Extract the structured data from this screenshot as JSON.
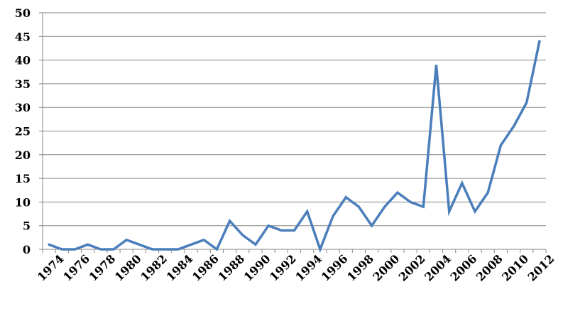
{
  "chart_data": {
    "type": "line",
    "title": "",
    "xlabel": "",
    "ylabel": "",
    "x": [
      1974,
      1975,
      1976,
      1977,
      1978,
      1979,
      1980,
      1981,
      1982,
      1983,
      1984,
      1985,
      1986,
      1987,
      1988,
      1989,
      1990,
      1991,
      1992,
      1993,
      1994,
      1995,
      1996,
      1997,
      1998,
      1999,
      2000,
      2001,
      2002,
      2003,
      2004,
      2005,
      2006,
      2007,
      2008,
      2009,
      2010,
      2011,
      2012
    ],
    "x_tick_labels": [
      "1974",
      "1976",
      "1978",
      "1980",
      "1982",
      "1984",
      "1986",
      "1988",
      "1990",
      "1992",
      "1994",
      "1996",
      "1998",
      "2000",
      "2002",
      "2004",
      "2006",
      "2008",
      "2010",
      "2012"
    ],
    "y_tick_labels": [
      "0",
      "5",
      "10",
      "15",
      "20",
      "25",
      "30",
      "35",
      "40",
      "45",
      "50"
    ],
    "ylim": [
      0,
      50
    ],
    "grid": true,
    "legend": "none",
    "series": [
      {
        "color": "#4a7ebb",
        "values": [
          1,
          0,
          0,
          1,
          0,
          0,
          2,
          1,
          0,
          0,
          0,
          1,
          2,
          0,
          6,
          3,
          1,
          5,
          4,
          4,
          8,
          0,
          7,
          11,
          9,
          5,
          9,
          12,
          10,
          9,
          39,
          8,
          14,
          8,
          12,
          22,
          26,
          31,
          44
        ]
      }
    ]
  }
}
